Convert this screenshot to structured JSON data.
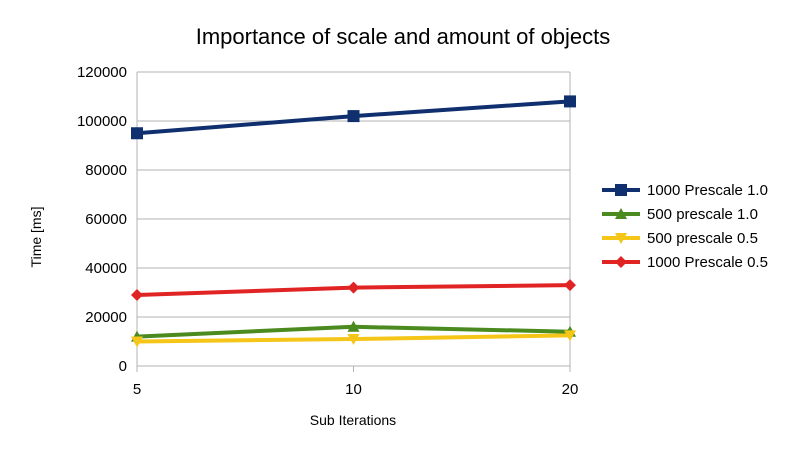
{
  "chart_data": {
    "type": "line",
    "title": "Importance of scale and amount of objects",
    "xlabel": "Sub Iterations",
    "ylabel": "Time [ms]",
    "categories": [
      "5",
      "10",
      "20"
    ],
    "ylim": [
      0,
      120000
    ],
    "yticks": [
      "0",
      "20000",
      "40000",
      "60000",
      "80000",
      "100000",
      "120000"
    ],
    "grid": true,
    "legend_position": "right",
    "series": [
      {
        "name": "1000 Prescale 1.0",
        "color": "#0f2f6e",
        "marker": "square",
        "values": [
          95000,
          102000,
          108000
        ]
      },
      {
        "name": "500 prescale 1.0",
        "color": "#4a8a1f",
        "marker": "triangle-up",
        "values": [
          12000,
          16000,
          14000
        ]
      },
      {
        "name": "500 prescale 0.5",
        "color": "#f5c518",
        "marker": "triangle-down",
        "values": [
          10000,
          11000,
          12500
        ]
      },
      {
        "name": "1000 Prescale 0.5",
        "color": "#e02424",
        "marker": "diamond",
        "values": [
          29000,
          32000,
          33000
        ]
      }
    ]
  }
}
